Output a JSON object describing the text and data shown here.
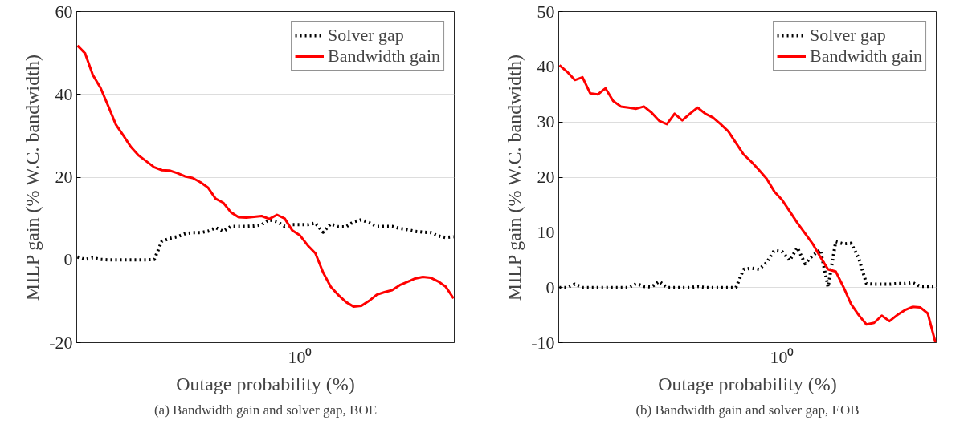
{
  "chart_data": [
    {
      "type": "line",
      "xlabel": "Outage probability (%)",
      "ylabel": "MILP gain (% W.C. bandwidth)",
      "ylim": [
        -20,
        60
      ],
      "yticks": [
        -20,
        0,
        20,
        40,
        60
      ],
      "categories": [
        null,
        null,
        null,
        null,
        null,
        null,
        null,
        null,
        null,
        null,
        null,
        null,
        null,
        null,
        null,
        null,
        null,
        null,
        null,
        null,
        null,
        null,
        null,
        null,
        null,
        null,
        null,
        null,
        null,
        "10⁰",
        null,
        null,
        null,
        null,
        null,
        null,
        null,
        null,
        null,
        null,
        null,
        null,
        null,
        null,
        null,
        null,
        null,
        null,
        null,
        null
      ],
      "grid": true,
      "legend": "top right",
      "annotations": [
        "(a) Bandwidth gain and solver gap, BOE"
      ],
      "series": [
        {
          "name": "Solver gap",
          "color": "#000000",
          "line_style": "dotted",
          "values": [
            0.7,
            0.1,
            0.5,
            0.1,
            0,
            0,
            0,
            0,
            0,
            0,
            0.1,
            4.5,
            5.2,
            5.6,
            6.3,
            6.6,
            6.6,
            6.9,
            7.8,
            6.9,
            8.1,
            8.1,
            8.1,
            8.2,
            8.5,
            9.7,
            9.2,
            8.1,
            8.5,
            8.5,
            8.5,
            8.9,
            6.7,
            8.7,
            8.0,
            8.0,
            9.2,
            9.7,
            9.0,
            8.1,
            8.1,
            8.1,
            7.6,
            7.3,
            6.9,
            6.7,
            6.6,
            5.8,
            5.4,
            5.6
          ]
        },
        {
          "name": "Bandwidth gain",
          "color": "#ff0000",
          "line_style": "solid",
          "values": [
            51.8,
            49.9,
            44.7,
            41.6,
            37.2,
            32.7,
            30.0,
            27.2,
            25.2,
            23.8,
            22.4,
            21.7,
            21.6,
            21.0,
            20.2,
            19.8,
            18.8,
            17.5,
            14.8,
            13.8,
            11.5,
            10.3,
            10.2,
            10.4,
            10.6,
            9.9,
            10.9,
            10.0,
            7.1,
            5.9,
            3.5,
            1.6,
            -3.0,
            -6.5,
            -8.5,
            -10.2,
            -11.3,
            -11.1,
            -9.9,
            -8.4,
            -7.8,
            -7.3,
            -6.1,
            -5.3,
            -4.5,
            -4.1,
            -4.3,
            -5.2,
            -6.5,
            -9.3
          ]
        }
      ]
    },
    {
      "type": "line",
      "xlabel": "Outage probability (%)",
      "ylabel": "MILP gain (% W.C. bandwidth)",
      "ylim": [
        -10,
        50
      ],
      "yticks": [
        -10,
        0,
        10,
        20,
        30,
        40,
        50
      ],
      "categories": [
        null,
        null,
        null,
        null,
        null,
        null,
        null,
        null,
        null,
        null,
        null,
        null,
        null,
        null,
        null,
        null,
        null,
        null,
        null,
        null,
        null,
        null,
        null,
        null,
        null,
        null,
        null,
        null,
        null,
        "10⁰",
        null,
        null,
        null,
        null,
        null,
        null,
        null,
        null,
        null,
        null,
        null,
        null,
        null,
        null,
        null,
        null,
        null,
        null,
        null,
        null
      ],
      "grid": true,
      "legend": "top right",
      "annotations": [
        "(b) Bandwidth gain and solver gap, EOB"
      ],
      "series": [
        {
          "name": "Solver gap",
          "color": "#000000",
          "line_style": "dotted",
          "values": [
            0,
            0,
            0.6,
            0,
            0,
            0,
            0,
            0,
            0,
            0,
            0.7,
            0.2,
            0.1,
            1.1,
            0,
            0,
            0,
            0,
            0.2,
            0,
            0,
            0,
            0,
            0,
            3.3,
            3.5,
            3.3,
            4.5,
            6.7,
            6.5,
            4.9,
            7.2,
            4.3,
            5.8,
            6.8,
            0.1,
            8.3,
            7.9,
            8.0,
            5.3,
            0.7,
            0.6,
            0.6,
            0.6,
            0.7,
            0.7,
            0.9,
            0.2,
            0.2,
            0.2
          ]
        },
        {
          "name": "Bandwidth gain",
          "color": "#ff0000",
          "line_style": "solid",
          "values": [
            40.3,
            39.1,
            37.6,
            38.1,
            35.2,
            35.0,
            36.1,
            33.8,
            32.8,
            32.6,
            32.4,
            32.8,
            31.7,
            30.2,
            29.6,
            31.5,
            30.3,
            31.5,
            32.6,
            31.5,
            30.8,
            29.6,
            28.3,
            26.2,
            24.1,
            22.8,
            21.3,
            19.7,
            17.4,
            15.9,
            13.8,
            11.7,
            9.8,
            7.9,
            5.5,
            3.3,
            2.9,
            0.1,
            -3.0,
            -5.0,
            -6.7,
            -6.4,
            -5.1,
            -6.1,
            -5.0,
            -4.1,
            -3.5,
            -3.6,
            -4.7,
            -10.0
          ]
        }
      ]
    }
  ]
}
